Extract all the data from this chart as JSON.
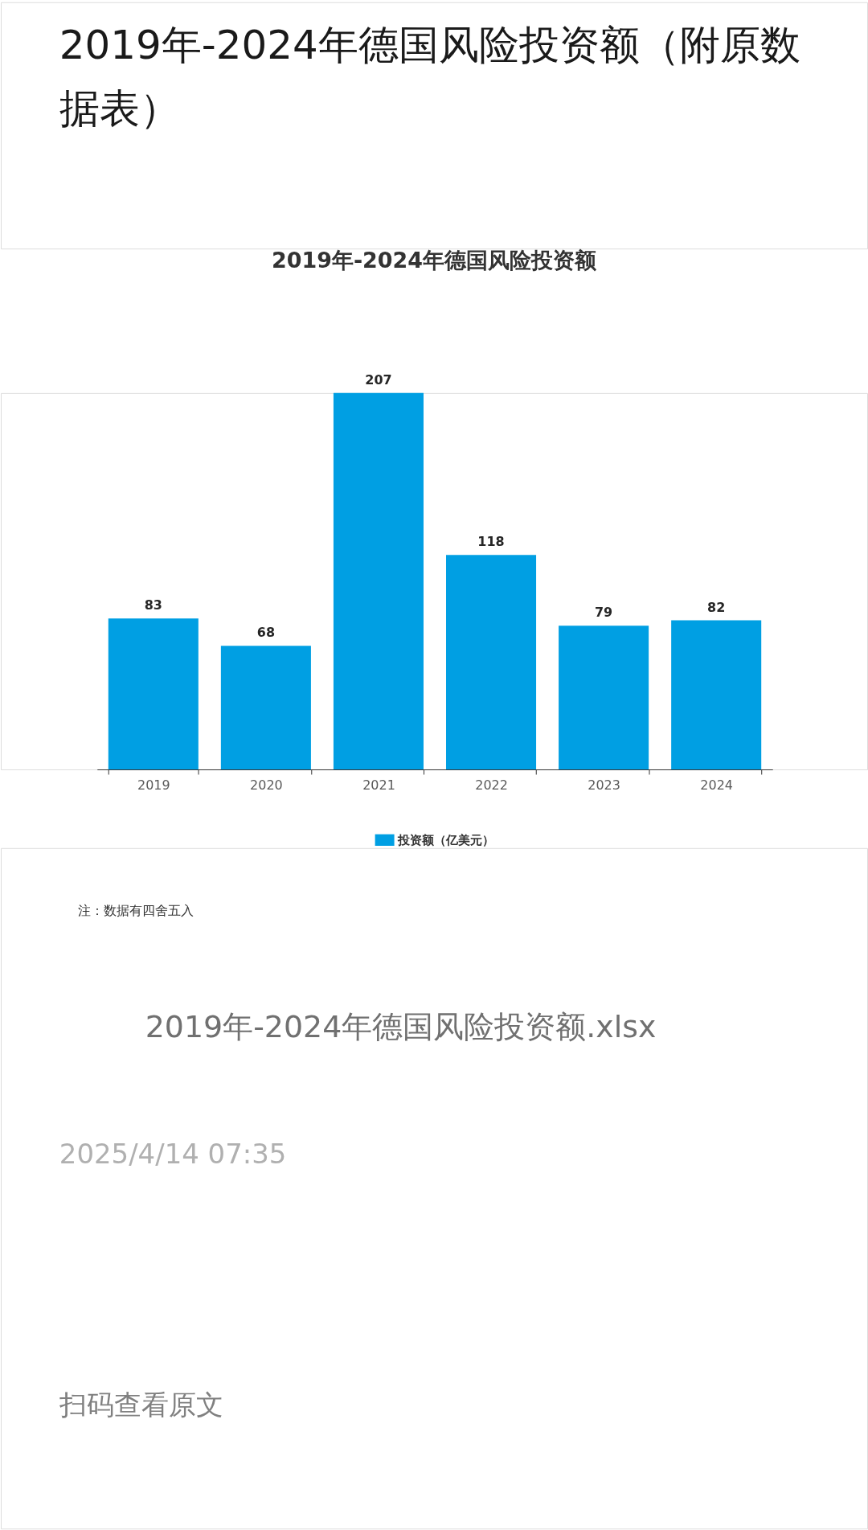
{
  "chart_data": {
    "type": "bar",
    "title": "2019年-2024年德国风险投资额",
    "categories": [
      "2019",
      "2020",
      "2021",
      "2022",
      "2023",
      "2024"
    ],
    "series": [
      {
        "name": "投资额（亿美元）",
        "color": "#009fe3",
        "values": [
          83,
          68,
          207,
          118,
          79,
          82
        ]
      }
    ],
    "data_labels": true,
    "legend": "bottom",
    "annotations": [
      "2019年-2024年德国风险投资额（附原数据表）",
      "注：数据有四舍五入",
      "2019年-2024年德国风险投资额.xlsx",
      "2025/4/14 07:35",
      "扫码查看原文"
    ]
  }
}
